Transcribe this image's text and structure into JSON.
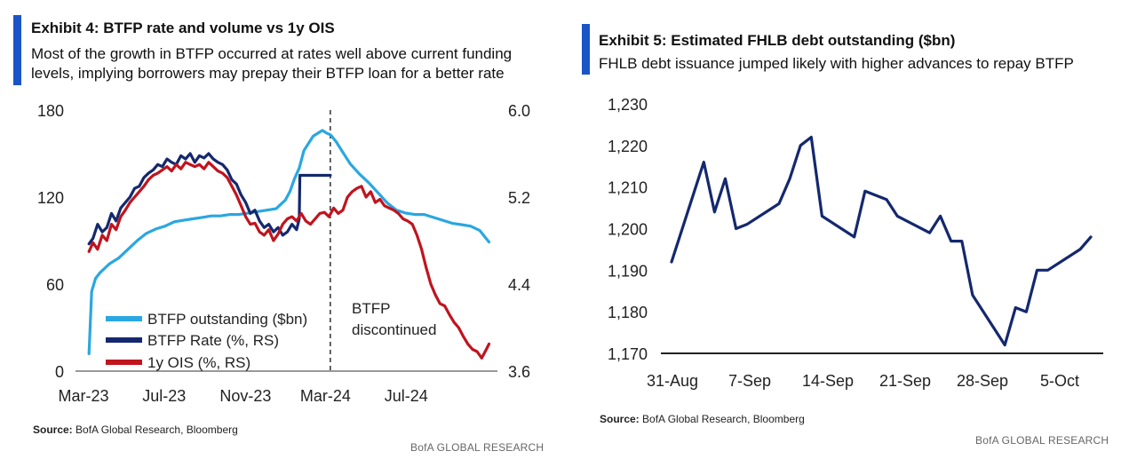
{
  "left": {
    "title": "Exhibit 4: BTFP rate and volume vs 1y OIS",
    "subtitle_line1": "Most of the growth in BTFP occurred at rates well above current funding",
    "subtitle_line2": "levels, implying borrowers may prepay their BTFP loan for a better rate",
    "source_label": "Source:",
    "source_text": " BofA Global Research, Bloomberg",
    "brand": "BofA GLOBAL RESEARCH",
    "annotation_line1": "BTFP",
    "annotation_line2": "discontinued"
  },
  "right": {
    "title": "Exhibit 5: Estimated FHLB debt outstanding ($bn)",
    "subtitle": "FHLB debt issuance jumped likely with higher advances to repay BTFP",
    "source_label": "Source:",
    "source_text": " BofA Global Research, Bloomberg",
    "brand": "BofA GLOBAL RESEARCH"
  },
  "colors": {
    "accent": "#1a54c7",
    "btfp_outstanding": "#2aa7e0",
    "btfp_rate": "#14286e",
    "ois": "#c0141e",
    "fhlb": "#14286e"
  },
  "chart_data": [
    {
      "type": "line",
      "title": "Exhibit 4: BTFP rate and volume vs 1y OIS",
      "x_tick_labels": [
        "Mar-23",
        "Jul-23",
        "Nov-23",
        "Mar-24",
        "Jul-24"
      ],
      "x_range": [
        "2023-03",
        "2024-10"
      ],
      "y_left_ticks": [
        "0",
        "60",
        "120",
        "180"
      ],
      "y_left_range": [
        0,
        180
      ],
      "y_right_ticks": [
        "3.6",
        "4.4",
        "5.2",
        "6.0"
      ],
      "y_right_range": [
        3.6,
        6.0
      ],
      "legend": [
        "BTFP outstanding ($bn)",
        "BTFP Rate (%, RS)",
        "1y OIS (%, RS)"
      ],
      "legend_position": "bottom-left",
      "vline_date": "2024-03-11",
      "series": [
        {
          "name": "BTFP outstanding ($bn)",
          "axis": "left",
          "x": [
            "2023-03-12",
            "2023-03-16",
            "2023-03-22",
            "2023-03-29",
            "2023-04-05",
            "2023-04-12",
            "2023-04-26",
            "2023-05-10",
            "2023-05-24",
            "2023-06-07",
            "2023-06-21",
            "2023-07-05",
            "2023-07-19",
            "2023-08-02",
            "2023-08-16",
            "2023-08-30",
            "2023-09-13",
            "2023-09-27",
            "2023-10-11",
            "2023-10-25",
            "2023-11-08",
            "2023-11-22",
            "2023-12-06",
            "2023-12-20",
            "2024-01-03",
            "2024-01-10",
            "2024-01-17",
            "2024-01-24",
            "2024-01-31",
            "2024-02-14",
            "2024-02-28",
            "2024-03-06",
            "2024-03-11",
            "2024-03-13",
            "2024-03-20",
            "2024-03-27",
            "2024-04-03",
            "2024-04-10",
            "2024-04-24",
            "2024-05-08",
            "2024-05-22",
            "2024-06-05",
            "2024-06-19",
            "2024-07-03",
            "2024-07-17",
            "2024-07-31",
            "2024-08-14",
            "2024-08-28",
            "2024-09-11",
            "2024-09-25",
            "2024-10-09",
            "2024-10-23",
            "2024-11-06"
          ],
          "values": [
            12,
            55,
            64,
            68,
            71,
            74,
            78,
            84,
            90,
            95,
            98,
            100,
            103,
            104,
            105,
            106,
            107,
            107,
            108,
            108,
            109,
            110,
            111,
            112,
            118,
            124,
            133,
            140,
            152,
            162,
            166,
            164,
            163,
            162,
            158,
            153,
            148,
            143,
            136,
            130,
            123,
            116,
            111,
            109,
            108,
            108,
            106,
            104,
            102,
            101,
            100,
            97,
            89
          ]
        },
        {
          "name": "BTFP Rate (%, RS)",
          "axis": "right",
          "x": [
            "2023-03-12",
            "2023-03-18",
            "2023-03-25",
            "2023-04-01",
            "2023-04-08",
            "2023-04-15",
            "2023-04-22",
            "2023-04-29",
            "2023-05-06",
            "2023-05-13",
            "2023-05-20",
            "2023-05-27",
            "2023-06-03",
            "2023-06-10",
            "2023-06-17",
            "2023-06-24",
            "2023-07-01",
            "2023-07-08",
            "2023-07-15",
            "2023-07-22",
            "2023-07-29",
            "2023-08-05",
            "2023-08-12",
            "2023-08-19",
            "2023-08-26",
            "2023-09-02",
            "2023-09-09",
            "2023-09-16",
            "2023-09-23",
            "2023-09-30",
            "2023-10-07",
            "2023-10-14",
            "2023-10-21",
            "2023-10-28",
            "2023-11-04",
            "2023-11-11",
            "2023-11-18",
            "2023-11-25",
            "2023-12-02",
            "2023-12-09",
            "2023-12-16",
            "2023-12-23",
            "2023-12-30",
            "2024-01-06",
            "2024-01-13",
            "2024-01-20",
            "2024-01-24",
            "2024-01-25",
            "2024-02-01",
            "2024-02-15",
            "2024-03-01",
            "2024-03-11"
          ],
          "values": [
            4.77,
            4.82,
            4.95,
            4.88,
            4.92,
            5.05,
            4.98,
            5.1,
            5.15,
            5.2,
            5.28,
            5.3,
            5.38,
            5.42,
            5.45,
            5.5,
            5.48,
            5.55,
            5.52,
            5.5,
            5.58,
            5.55,
            5.6,
            5.52,
            5.58,
            5.56,
            5.6,
            5.55,
            5.52,
            5.5,
            5.45,
            5.36,
            5.32,
            5.22,
            5.15,
            5.05,
            5.08,
            4.98,
            4.92,
            4.95,
            4.88,
            4.92,
            4.85,
            4.88,
            4.95,
            4.9,
            5.0,
            5.4,
            5.4,
            5.4,
            5.4,
            5.4
          ]
        },
        {
          "name": "1y OIS (%, RS)",
          "axis": "right",
          "x": [
            "2023-03-12",
            "2023-03-18",
            "2023-03-25",
            "2023-04-01",
            "2023-04-08",
            "2023-04-15",
            "2023-04-22",
            "2023-04-29",
            "2023-05-06",
            "2023-05-13",
            "2023-05-20",
            "2023-05-27",
            "2023-06-03",
            "2023-06-10",
            "2023-06-17",
            "2023-06-24",
            "2023-07-01",
            "2023-07-08",
            "2023-07-15",
            "2023-07-22",
            "2023-07-29",
            "2023-08-05",
            "2023-08-12",
            "2023-08-19",
            "2023-08-26",
            "2023-09-02",
            "2023-09-09",
            "2023-09-16",
            "2023-09-23",
            "2023-09-30",
            "2023-10-07",
            "2023-10-14",
            "2023-10-21",
            "2023-10-28",
            "2023-11-04",
            "2023-11-11",
            "2023-11-18",
            "2023-11-25",
            "2023-12-02",
            "2023-12-09",
            "2023-12-16",
            "2023-12-23",
            "2023-12-30",
            "2024-01-06",
            "2024-01-13",
            "2024-01-20",
            "2024-01-27",
            "2024-02-03",
            "2024-02-10",
            "2024-02-17",
            "2024-02-24",
            "2024-03-02",
            "2024-03-09",
            "2024-03-16",
            "2024-03-23",
            "2024-03-30",
            "2024-04-06",
            "2024-04-13",
            "2024-04-20",
            "2024-04-27",
            "2024-05-04",
            "2024-05-11",
            "2024-05-18",
            "2024-05-25",
            "2024-06-01",
            "2024-06-08",
            "2024-06-15",
            "2024-06-22",
            "2024-06-29",
            "2024-07-06",
            "2024-07-13",
            "2024-07-20",
            "2024-07-27",
            "2024-08-03",
            "2024-08-10",
            "2024-08-17",
            "2024-08-24",
            "2024-08-31",
            "2024-09-07",
            "2024-09-14",
            "2024-09-21",
            "2024-09-28",
            "2024-10-05",
            "2024-10-12",
            "2024-10-19",
            "2024-10-26",
            "2024-11-02",
            "2024-11-06"
          ],
          "values": [
            4.7,
            4.78,
            4.72,
            4.85,
            4.8,
            4.95,
            4.9,
            5.02,
            5.08,
            5.15,
            5.2,
            5.25,
            5.3,
            5.36,
            5.4,
            5.42,
            5.45,
            5.48,
            5.44,
            5.5,
            5.46,
            5.52,
            5.5,
            5.48,
            5.5,
            5.46,
            5.52,
            5.48,
            5.44,
            5.42,
            5.38,
            5.3,
            5.22,
            5.12,
            5.02,
            4.95,
            4.96,
            4.88,
            4.85,
            4.9,
            4.8,
            4.86,
            4.95,
            5.0,
            5.02,
            4.98,
            5.05,
            4.98,
            4.95,
            5.0,
            5.05,
            5.06,
            5.02,
            5.1,
            5.05,
            5.08,
            5.2,
            5.25,
            5.28,
            5.3,
            5.2,
            5.25,
            5.15,
            5.18,
            5.12,
            5.1,
            5.08,
            5.05,
            5.0,
            4.98,
            4.95,
            4.85,
            4.72,
            4.55,
            4.4,
            4.3,
            4.22,
            4.2,
            4.12,
            4.05,
            4.0,
            3.92,
            3.85,
            3.8,
            3.78,
            3.72,
            3.8,
            3.85
          ]
        }
      ]
    },
    {
      "type": "line",
      "title": "Exhibit 5: Estimated FHLB debt outstanding ($bn)",
      "x_tick_labels": [
        "31-Aug",
        "7-Sep",
        "14-Sep",
        "21-Sep",
        "28-Sep",
        "5-Oct"
      ],
      "ylim": [
        1170,
        1230
      ],
      "y_ticks": [
        "1,170",
        "1,180",
        "1,190",
        "1,200",
        "1,210",
        "1,220",
        "1,230"
      ],
      "grid": false,
      "series": [
        {
          "name": "",
          "x": [
            "2024-08-30",
            "2024-09-02",
            "2024-09-03",
            "2024-09-04",
            "2024-09-05",
            "2024-09-06",
            "2024-09-09",
            "2024-09-10",
            "2024-09-11",
            "2024-09-12",
            "2024-09-13",
            "2024-09-16",
            "2024-09-17",
            "2024-09-18",
            "2024-09-19",
            "2024-09-20",
            "2024-09-23",
            "2024-09-24",
            "2024-09-25",
            "2024-09-26",
            "2024-09-27",
            "2024-09-30",
            "2024-10-01",
            "2024-10-02",
            "2024-10-03",
            "2024-10-04",
            "2024-10-07",
            "2024-10-08"
          ],
          "values": [
            1192,
            1216,
            1204,
            1212,
            1200,
            1201,
            1206,
            1212,
            1220,
            1222,
            1203,
            1198,
            1209,
            1208,
            1207,
            1203,
            1199,
            1203,
            1197,
            1197,
            1184,
            1172,
            1181,
            1180,
            1190,
            1190,
            1195,
            1198
          ]
        }
      ]
    }
  ]
}
